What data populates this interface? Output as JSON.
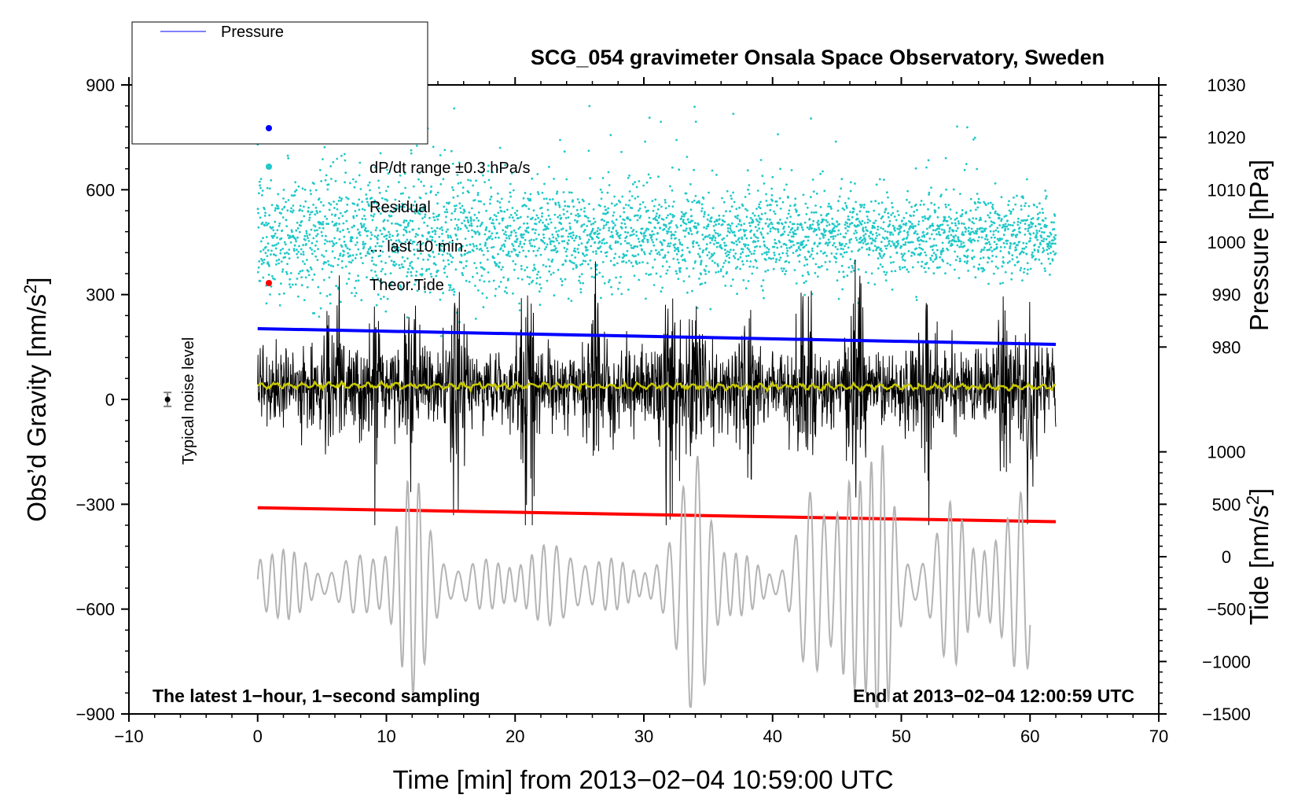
{
  "chart_data": {
    "type": "line",
    "title": "SCG_054 gravimeter Onsala Space Observatory, Sweden",
    "xlabel": "Time [min] from 2013−02−04 10:59:00 UTC",
    "ylabel": "Obs’d Gravity [nm/s²]",
    "ylabel_parts": [
      "Obs’d Gravity [nm/s",
      "2",
      "]"
    ],
    "y2label_top": "Pressure [hPa]",
    "y2label_bottom_parts": [
      "Tide [nm/s",
      "2",
      "]"
    ],
    "xlim": [
      -10,
      70
    ],
    "ylim": [
      -900,
      900
    ],
    "x_ticks": [
      "−10",
      "0",
      "10",
      "20",
      "30",
      "40",
      "50",
      "60",
      "70"
    ],
    "x_tick_values": [
      -10,
      0,
      10,
      20,
      30,
      40,
      50,
      60,
      70
    ],
    "y_ticks": [
      "900",
      "600",
      "300",
      "0",
      "−300",
      "−600",
      "−900"
    ],
    "y_tick_values": [
      900,
      600,
      300,
      0,
      -300,
      -600,
      -900
    ],
    "pressure_axis": {
      "ticks": [
        "1030",
        "1020",
        "1010",
        "1000",
        "990",
        "980"
      ],
      "values": [
        1030,
        1020,
        1010,
        1000,
        990,
        980
      ],
      "gravity_equiv": [
        900,
        750,
        600,
        450,
        300,
        150
      ]
    },
    "tide_axis": {
      "ticks": [
        "1000",
        "500",
        "0",
        "−500",
        "−1000",
        "−1500"
      ],
      "values": [
        1000,
        500,
        0,
        -500,
        -1000,
        -1500
      ],
      "gravity_equiv": [
        -150,
        -300,
        -450,
        -600,
        -750,
        -900
      ]
    },
    "legend": {
      "entries": [
        "Pressure",
        "dP/dt range ±0.3 hPa/s",
        "Residual",
        "... last 10 min.",
        "Theor.Tide"
      ],
      "colors": [
        "#0000ff",
        "#20c8c8",
        "#000000",
        "#c8c800",
        "#ff0000"
      ]
    },
    "annotations": {
      "left": "The latest 1−hour, 1−second sampling",
      "right": "End at 2013−02−04 12:00:59 UTC",
      "noise": "Typical noise level"
    },
    "series": [
      {
        "name": "Pressure",
        "color": "#0000ff",
        "x": [
          0,
          62
        ],
        "values": [
          983.5,
          980.5
        ],
        "axis": "pressure"
      },
      {
        "name": "Theor.Tide",
        "color": "#ff0000",
        "x": [
          0,
          62
        ],
        "values": [
          -310,
          -350
        ],
        "axis": "gravity"
      },
      {
        "name": "Residual (smoothed)",
        "color": "#c8c800",
        "x": [
          0,
          62
        ],
        "values": [
          40,
          35
        ],
        "axis": "gravity"
      },
      {
        "name": "Residual",
        "color": "#000000",
        "x_range": [
          0,
          62
        ],
        "center": 35,
        "amplitude": 150,
        "axis": "gravity"
      },
      {
        "name": "dP/dt",
        "color": "#20c8c8",
        "x_range": [
          0,
          62
        ],
        "center": 470,
        "spread": 170,
        "axis": "gravity"
      },
      {
        "name": "Tide",
        "color": "#b4b4b4",
        "x_range": [
          0,
          60
        ],
        "center": -530,
        "amplitude": 130,
        "axis": "gravity"
      }
    ],
    "noise_bar": {
      "x": -7,
      "y": 0,
      "err": 20
    }
  },
  "colors": {
    "pressure": "#0000ff",
    "tide": "#ff0000",
    "residual": "#000000",
    "residual_avg": "#c8c800",
    "dpdt": "#20c8c8",
    "tide_gray": "#b4b4b4"
  }
}
